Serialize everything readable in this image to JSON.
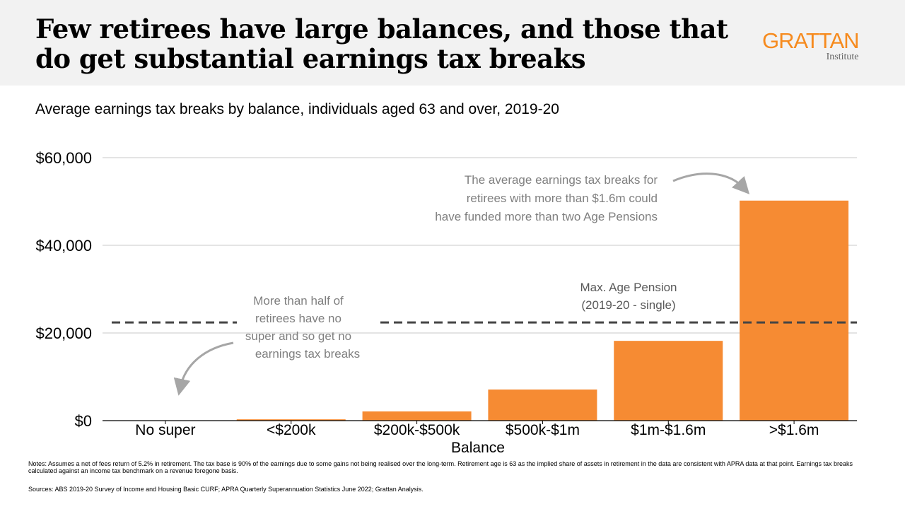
{
  "header": {
    "title": "Few retirees have large balances, and those that do get substantial earnings tax breaks",
    "logo_main": "GRATTAN",
    "logo_sub": "Institute"
  },
  "colors": {
    "bar": "#f68b33",
    "reference_line": "#444444",
    "annotation": "#7f7f7f",
    "header_bg": "#f2f2f2",
    "brand": "#f68b1f"
  },
  "chart_data": {
    "type": "bar",
    "title": "Average earnings tax breaks by balance, individuals aged 63 and over, 2019-20",
    "xlabel": "Balance",
    "ylabel": "",
    "categories": [
      "No super",
      "<$200k",
      "$200k-$500k",
      "$500k-$1m",
      "$1m-$1.6m",
      ">$1.6m"
    ],
    "values": [
      0,
      300,
      2100,
      7100,
      18200,
      50200
    ],
    "ylim": [
      0,
      60000
    ],
    "yticks": [
      0,
      20000,
      40000,
      60000
    ],
    "ytick_labels": [
      "$0",
      "$20,000",
      "$40,000",
      "$60,000"
    ],
    "grid": true,
    "reference_line": {
      "value": 22400,
      "label_line1": "Max. Age Pension",
      "label_line2": "(2019-20 - single)"
    },
    "annotations": [
      {
        "lines": [
          "More than half of",
          "retirees have no",
          "super and so get no",
          "earnings tax breaks"
        ]
      },
      {
        "lines": [
          "The average earnings tax breaks for",
          "retirees with more than $1.6m could",
          "have funded more than two Age Pensions"
        ]
      }
    ]
  },
  "footer": {
    "notes": "Notes: Assumes a net of fees return of 5.2% in retirement. The tax base is 90% of the earnings due to some gains not being realised over the long-term. Retirement age is 63 as the implied share of assets in retirement in the data are consistent with APRA data at that point. Earnings tax breaks calculated against an income tax benchmark on a revenue foregone basis.",
    "sources": "Sources: ABS 2019-20 Survey of Income and Housing Basic CURF; APRA Quarterly Superannuation Statistics June 2022; Grattan Analysis."
  }
}
